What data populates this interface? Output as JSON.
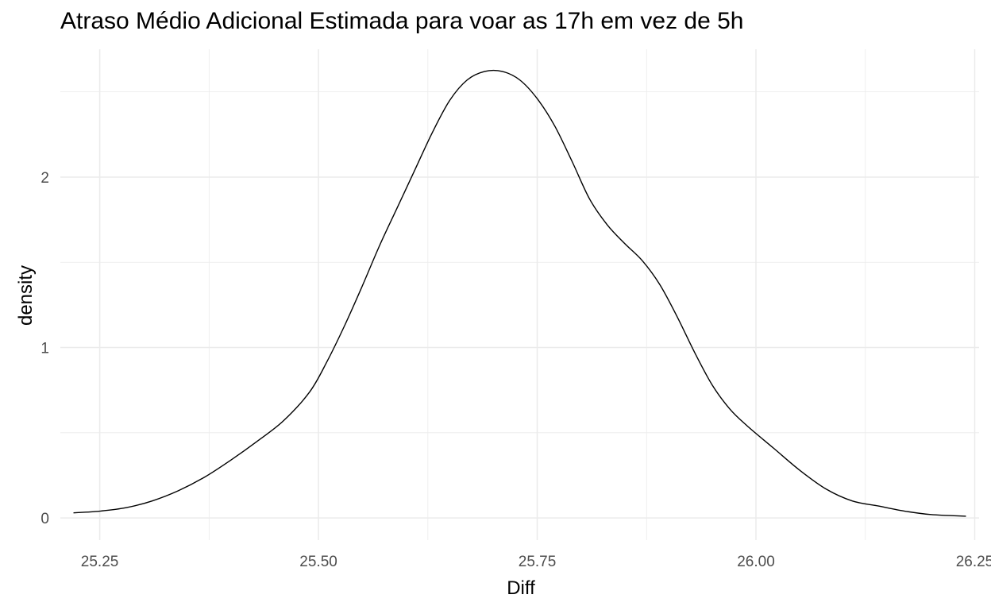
{
  "chart_data": {
    "type": "area",
    "title": "Atraso Médio Adicional Estimada para voar as 17h em vez de 5h",
    "xlabel": "Diff",
    "ylabel": "density",
    "xlim": [
      25.205,
      26.255
    ],
    "ylim": [
      -0.13,
      2.75
    ],
    "x_ticks": [
      25.25,
      25.5,
      25.75,
      26.0,
      26.25
    ],
    "x_tick_labels": [
      "25.25",
      "25.50",
      "25.75",
      "26.00",
      "26.25"
    ],
    "y_ticks": [
      0,
      1,
      2
    ],
    "y_tick_labels": [
      "0",
      "1",
      "2"
    ],
    "grid": true,
    "legend": "none",
    "line_color": "#000000",
    "grid_color": "#ebebeb",
    "series": [
      {
        "x": [
          25.22,
          25.25,
          25.28,
          25.31,
          25.34,
          25.37,
          25.4,
          25.43,
          25.46,
          25.49,
          25.51,
          25.53,
          25.55,
          25.57,
          25.59,
          25.61,
          25.63,
          25.65,
          25.67,
          25.69,
          25.71,
          25.73,
          25.75,
          25.77,
          25.79,
          25.81,
          25.83,
          25.85,
          25.87,
          25.89,
          25.91,
          25.93,
          25.95,
          25.97,
          25.99,
          26.02,
          26.05,
          26.08,
          26.11,
          26.14,
          26.17,
          26.2,
          26.24
        ],
        "y": [
          0.03,
          0.04,
          0.06,
          0.1,
          0.16,
          0.24,
          0.34,
          0.45,
          0.57,
          0.74,
          0.92,
          1.13,
          1.36,
          1.6,
          1.82,
          2.04,
          2.26,
          2.45,
          2.57,
          2.62,
          2.62,
          2.57,
          2.46,
          2.3,
          2.09,
          1.87,
          1.72,
          1.61,
          1.51,
          1.37,
          1.18,
          0.97,
          0.78,
          0.64,
          0.54,
          0.41,
          0.28,
          0.17,
          0.1,
          0.07,
          0.04,
          0.02,
          0.01
        ]
      }
    ]
  }
}
